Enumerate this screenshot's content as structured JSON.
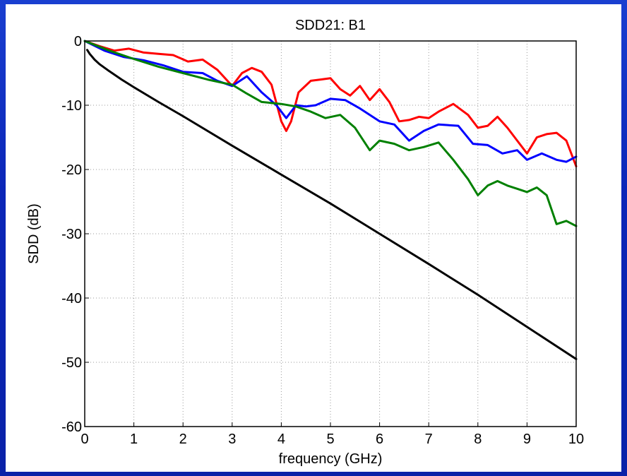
{
  "chart_data": {
    "type": "line",
    "title": "SDD21: B1",
    "xlabel": "frequency (GHz)",
    "ylabel": "SDD (dB)",
    "xlim": [
      0,
      10
    ],
    "ylim": [
      -60,
      0
    ],
    "xticks": [
      0,
      1,
      2,
      3,
      4,
      5,
      6,
      7,
      8,
      9,
      10
    ],
    "yticks": [
      0,
      -10,
      -20,
      -30,
      -40,
      -50,
      -60
    ],
    "grid": true,
    "legend": "none",
    "series": [
      {
        "color": "#ff0000",
        "x": [
          0,
          0.3,
          0.6,
          0.9,
          1.2,
          1.5,
          1.8,
          2.1,
          2.4,
          2.7,
          3.0,
          3.2,
          3.4,
          3.6,
          3.8,
          4.0,
          4.1,
          4.2,
          4.35,
          4.6,
          4.8,
          5.0,
          5.2,
          5.4,
          5.6,
          5.8,
          6.0,
          6.2,
          6.4,
          6.6,
          6.8,
          7.0,
          7.2,
          7.5,
          7.8,
          8.0,
          8.2,
          8.4,
          8.6,
          8.8,
          9.0,
          9.2,
          9.4,
          9.6,
          9.8,
          10.0
        ],
        "y": [
          0,
          -0.8,
          -1.5,
          -1.2,
          -1.8,
          -2.0,
          -2.2,
          -3.2,
          -2.9,
          -4.5,
          -7.0,
          -5.0,
          -4.2,
          -4.8,
          -6.8,
          -12.5,
          -14.0,
          -12.5,
          -8.0,
          -6.2,
          -6.0,
          -5.8,
          -7.5,
          -8.5,
          -7.0,
          -9.2,
          -7.5,
          -9.5,
          -12.5,
          -12.3,
          -11.8,
          -12.0,
          -11.0,
          -9.8,
          -11.5,
          -13.5,
          -13.2,
          -11.8,
          -13.5,
          -15.5,
          -17.5,
          -15.0,
          -14.5,
          -14.3,
          -15.5,
          -19.5
        ]
      },
      {
        "color": "#0000ff",
        "x": [
          0,
          0.4,
          0.8,
          1.2,
          1.6,
          2.0,
          2.4,
          2.7,
          3.0,
          3.3,
          3.6,
          3.9,
          4.1,
          4.3,
          4.5,
          4.7,
          5.0,
          5.3,
          5.6,
          6.0,
          6.3,
          6.6,
          6.9,
          7.2,
          7.6,
          7.9,
          8.2,
          8.5,
          8.8,
          9.0,
          9.3,
          9.6,
          9.8,
          10.0
        ],
        "y": [
          0,
          -1.5,
          -2.5,
          -3.0,
          -3.8,
          -4.8,
          -5.0,
          -6.2,
          -7.0,
          -5.5,
          -8.0,
          -10.0,
          -12.0,
          -10.0,
          -10.2,
          -10.0,
          -9.0,
          -9.2,
          -10.5,
          -12.5,
          -13.0,
          -15.5,
          -14.0,
          -13.0,
          -13.2,
          -16.0,
          -16.2,
          -17.5,
          -17.0,
          -18.5,
          -17.5,
          -18.5,
          -18.8,
          -18.0
        ]
      },
      {
        "color": "#008000",
        "x": [
          0,
          0.5,
          1.0,
          1.5,
          2.0,
          2.5,
          2.8,
          3.0,
          3.3,
          3.6,
          4.0,
          4.3,
          4.6,
          4.9,
          5.2,
          5.5,
          5.8,
          6.0,
          6.3,
          6.6,
          6.9,
          7.2,
          7.5,
          7.8,
          8.0,
          8.2,
          8.4,
          8.6,
          8.8,
          9.0,
          9.2,
          9.4,
          9.6,
          9.8,
          10.0
        ],
        "y": [
          0,
          -1.5,
          -2.8,
          -4.0,
          -5.0,
          -6.0,
          -6.5,
          -6.8,
          -8.2,
          -9.5,
          -9.8,
          -10.2,
          -11.0,
          -12.0,
          -11.5,
          -13.5,
          -17.0,
          -15.5,
          -16.0,
          -17.0,
          -16.5,
          -15.8,
          -18.5,
          -21.5,
          -24.0,
          -22.5,
          -21.8,
          -22.5,
          -23.0,
          -23.5,
          -22.8,
          -24.0,
          -28.5,
          -28.0,
          -28.8
        ]
      },
      {
        "color": "#000000",
        "x": [
          0.05,
          0.1,
          0.2,
          0.3,
          0.5,
          0.75,
          1.0,
          1.5,
          2.0,
          3.0,
          4.0,
          5.0,
          6.0,
          7.0,
          8.0,
          9.0,
          10.0
        ],
        "y": [
          -1.4,
          -2.0,
          -2.9,
          -3.6,
          -4.7,
          -6.0,
          -7.2,
          -9.5,
          -11.7,
          -16.3,
          -20.8,
          -25.3,
          -30.0,
          -34.7,
          -39.5,
          -44.5,
          -49.5
        ]
      }
    ]
  }
}
